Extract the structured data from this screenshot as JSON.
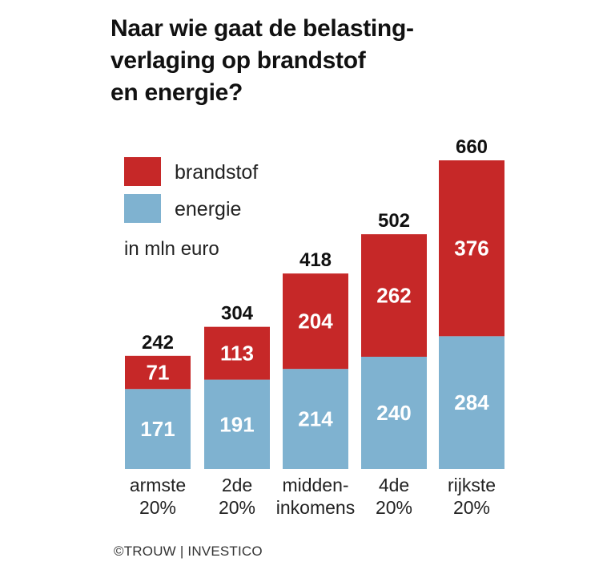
{
  "title": {
    "lines": [
      "Naar wie gaat de belasting-",
      "verlaging op brandstof",
      "en energie?"
    ]
  },
  "credit": "©TROUW | INVESTICO",
  "colors": {
    "brandstof": "#c62828",
    "energie": "#7fb2d0"
  },
  "chart_data": {
    "type": "bar",
    "stacked": true,
    "categories": [
      [
        "armste",
        "20%"
      ],
      [
        "2de",
        "20%"
      ],
      [
        "midden-",
        "inkomens"
      ],
      [
        "4de",
        "20%"
      ],
      [
        "rijkste",
        "20%"
      ]
    ],
    "series": [
      {
        "name": "energie",
        "values": [
          171,
          191,
          214,
          240,
          284
        ]
      },
      {
        "name": "brandstof",
        "values": [
          71,
          113,
          204,
          262,
          376
        ]
      }
    ],
    "totals": [
      242,
      304,
      418,
      502,
      660
    ],
    "unit_note": "in mln euro",
    "legend": {
      "placement": "top-left",
      "items": [
        "brandstof",
        "energie"
      ]
    },
    "ylim": [
      0,
      660
    ],
    "grid": false
  }
}
